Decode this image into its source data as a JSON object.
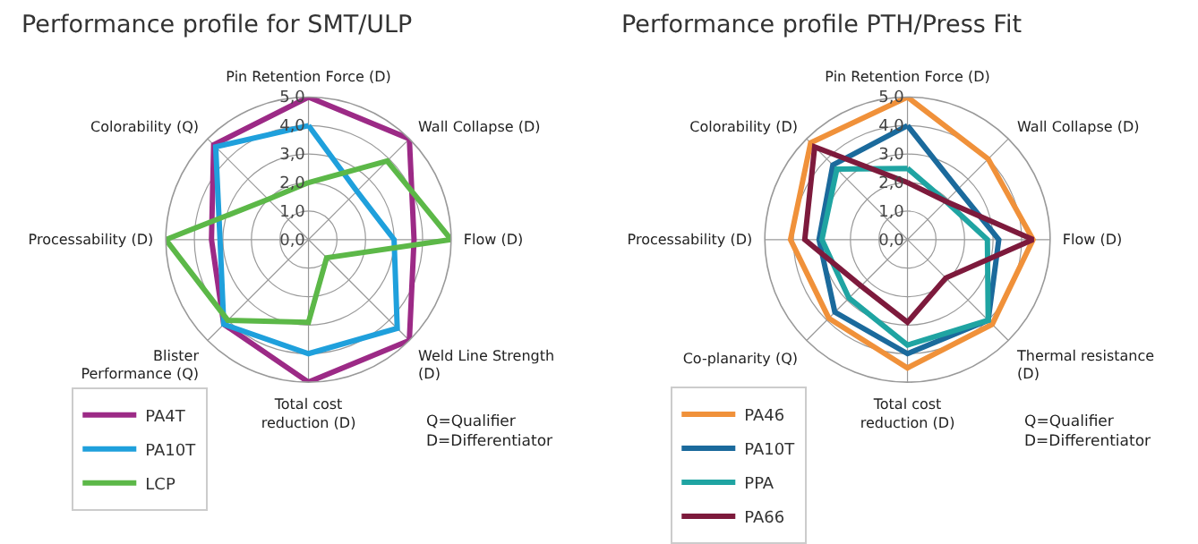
{
  "chart_data": [
    {
      "type": "radar",
      "title": "Performance profile for SMT/ULP",
      "categories": [
        "Pin Retention Force (D)",
        "Wall Collapse (D)",
        "Flow (D)",
        "Weld Line Strength\n(D)",
        "Total cost\nreduction (D)",
        "Blister\nPerformance (Q)",
        "Processability (D)",
        "Colorability (Q)"
      ],
      "series": [
        {
          "name": "PA4T",
          "color": "#9c2a86",
          "values": [
            5.0,
            5.0,
            3.7,
            5.0,
            5.0,
            4.2,
            3.4,
            4.7
          ]
        },
        {
          "name": "PA10T",
          "color": "#1fa0dc",
          "values": [
            4.0,
            2.4,
            3.0,
            4.4,
            4.0,
            4.2,
            3.1,
            4.6
          ]
        },
        {
          "name": "LCP",
          "color": "#5cb848",
          "values": [
            2.0,
            3.9,
            5.0,
            0.9,
            2.9,
            4.0,
            5.0,
            2.0
          ]
        }
      ],
      "ylim": [
        0,
        5
      ],
      "yticks": [
        {
          "value": 0,
          "label": "0,0"
        },
        {
          "value": 1,
          "label": "1,0"
        },
        {
          "value": 2,
          "label": "2,0"
        },
        {
          "value": 3,
          "label": "3,0"
        },
        {
          "value": 4,
          "label": "4,0"
        },
        {
          "value": 5,
          "label": "5,0"
        }
      ],
      "grid": true,
      "legend": "bottom left",
      "annotations": [
        "Q=Qualifier\nD=Differentiator"
      ]
    },
    {
      "type": "radar",
      "title": "Performance profile PTH/Press Fit",
      "categories": [
        "Pin Retention Force (D)",
        "Wall Collapse (D)",
        "Flow (D)",
        "Thermal resistance\n(D)",
        "Total cost\nreduction (D)",
        "Co-planarity (Q)",
        "Processability (D)",
        "Colorability (D)"
      ],
      "series": [
        {
          "name": "PA46",
          "color": "#f0913a",
          "values": [
            5.0,
            4.0,
            4.4,
            4.2,
            4.5,
            3.9,
            4.1,
            4.8
          ]
        },
        {
          "name": "PA10T",
          "color": "#1b6a9c",
          "values": [
            4.0,
            2.5,
            3.2,
            4.0,
            4.0,
            3.6,
            3.1,
            3.7
          ]
        },
        {
          "name": "PPA",
          "color": "#1fa4a2",
          "values": [
            2.5,
            1.9,
            2.8,
            4.0,
            3.7,
            2.9,
            3.0,
            3.5
          ]
        },
        {
          "name": "PA66",
          "color": "#7d1a3c",
          "values": [
            2.0,
            1.9,
            4.4,
            1.9,
            2.9,
            2.3,
            3.6,
            4.6
          ]
        }
      ],
      "ylim": [
        0,
        5
      ],
      "yticks": [
        {
          "value": 0,
          "label": "0,0"
        },
        {
          "value": 1,
          "label": "1,0"
        },
        {
          "value": 2,
          "label": "2,0"
        },
        {
          "value": 3,
          "label": "3,0"
        },
        {
          "value": 4,
          "label": "4,0"
        },
        {
          "value": 5,
          "label": "5,0"
        }
      ],
      "grid": true,
      "legend": "bottom left",
      "annotations": [
        "Q=Qualifier\nD=Differentiator"
      ]
    }
  ]
}
